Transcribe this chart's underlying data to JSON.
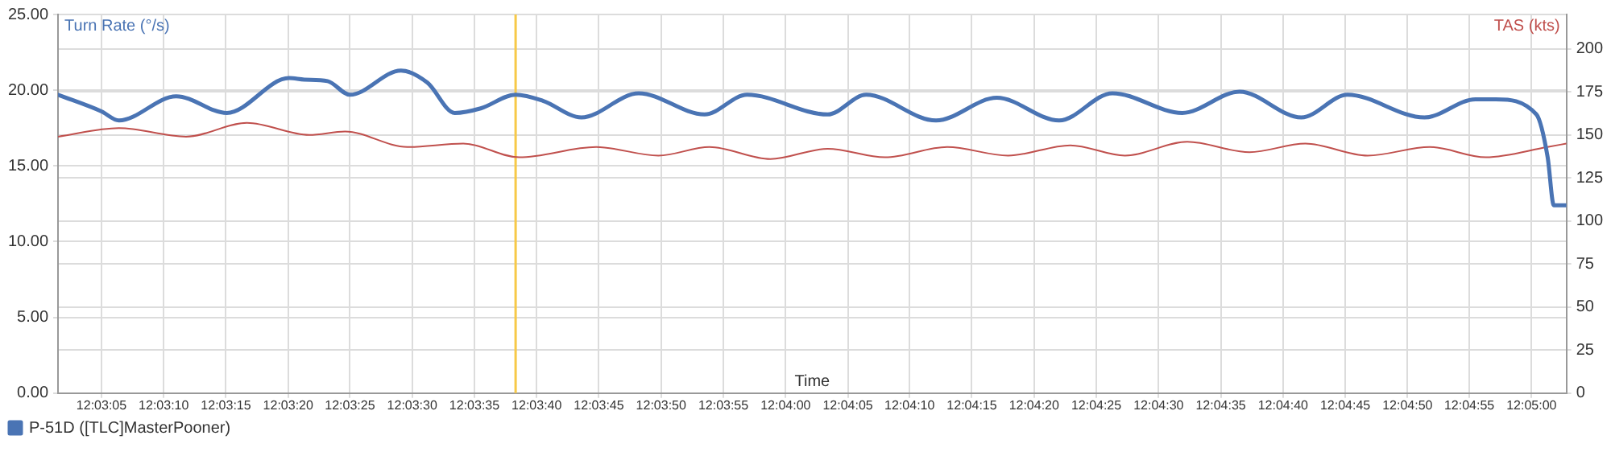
{
  "chart_data": {
    "type": "line",
    "xlabel": "Time",
    "ylabel": "Turn Rate (°/s)",
    "y2label": "TAS (kts)",
    "legend": "bottom left",
    "grid": true,
    "marker": "none",
    "line_style": "solid",
    "xlim": [
      12.05042,
      12.08411
    ],
    "xticks": [
      {
        "value": 12.05139,
        "label": "12:03:05"
      },
      {
        "value": 12.05278,
        "label": "12:03:10"
      },
      {
        "value": 12.05417,
        "label": "12:03:15"
      },
      {
        "value": 12.05556,
        "label": "12:03:20"
      },
      {
        "value": 12.05694,
        "label": "12:03:25"
      },
      {
        "value": 12.05833,
        "label": "12:03:30"
      },
      {
        "value": 12.05972,
        "label": "12:03:35"
      },
      {
        "value": 12.06111,
        "label": "12:03:40"
      },
      {
        "value": 12.0625,
        "label": "12:03:45"
      },
      {
        "value": 12.06389,
        "label": "12:03:50"
      },
      {
        "value": 12.06528,
        "label": "12:03:55"
      },
      {
        "value": 12.06667,
        "label": "12:04:00"
      },
      {
        "value": 12.06806,
        "label": "12:04:05"
      },
      {
        "value": 12.06944,
        "label": "12:04:10"
      },
      {
        "value": 12.07083,
        "label": "12:04:15"
      },
      {
        "value": 12.07222,
        "label": "12:04:20"
      },
      {
        "value": 12.07361,
        "label": "12:04:25"
      },
      {
        "value": 12.075,
        "label": "12:04:30"
      },
      {
        "value": 12.07639,
        "label": "12:04:35"
      },
      {
        "value": 12.07778,
        "label": "12:04:40"
      },
      {
        "value": 12.07917,
        "label": "12:04:45"
      },
      {
        "value": 12.08056,
        "label": "12:04:50"
      },
      {
        "value": 12.08194,
        "label": "12:04:55"
      },
      {
        "value": 12.08333,
        "label": "12:05:00"
      }
    ],
    "ylim": [
      0,
      25
    ],
    "yticks": [
      {
        "value": 0,
        "label": "0.00"
      },
      {
        "value": 5,
        "label": "5.00"
      },
      {
        "value": 10,
        "label": "10.00"
      },
      {
        "value": 15,
        "label": "15.00"
      },
      {
        "value": 20,
        "label": "20.00"
      },
      {
        "value": 25,
        "label": "25.00"
      }
    ],
    "y2lim": [
      0,
      220
    ],
    "y2ticks": [
      0,
      25,
      50,
      75,
      100,
      125,
      150,
      175,
      200
    ],
    "ref_lines": [
      {
        "axis": "x",
        "value": 12.06064,
        "color": "#f7c948"
      }
    ],
    "series": [
      {
        "name": "P-51D ([TLC]MasterPooner)",
        "color": "#4a74b4",
        "x": [
          12.05042,
          12.05139,
          12.05178,
          12.05306,
          12.05419,
          12.05558,
          12.05592,
          12.05644,
          12.05694,
          12.05808,
          12.05867,
          12.05928,
          12.05986,
          12.06064,
          12.06125,
          12.06211,
          12.06339,
          12.06486,
          12.06581,
          12.06761,
          12.06847,
          12.07003,
          12.07139,
          12.07278,
          12.07397,
          12.07553,
          12.07681,
          12.07819,
          12.07922,
          12.08094,
          12.08208,
          12.08253,
          12.08344,
          12.08369,
          12.08383,
          12.08411
        ],
        "values": [
          19.7,
          18.6,
          18.0,
          19.6,
          18.5,
          20.8,
          20.7,
          20.6,
          19.7,
          21.3,
          20.5,
          18.5,
          18.8,
          19.7,
          19.3,
          18.2,
          19.8,
          18.4,
          19.7,
          18.4,
          19.7,
          18.0,
          19.5,
          18.0,
          19.8,
          18.5,
          19.9,
          18.2,
          19.7,
          18.2,
          19.4,
          19.4,
          18.4,
          15.6,
          12.4,
          12.4
        ]
      },
      {
        "color": "#c0504d",
        "axis": "y2",
        "x": [
          12.05042,
          12.05178,
          12.05328,
          12.05464,
          12.05603,
          12.05683,
          12.05822,
          12.05947,
          12.06072,
          12.06244,
          12.06383,
          12.06497,
          12.06633,
          12.06761,
          12.06889,
          12.07028,
          12.07164,
          12.07303,
          12.07425,
          12.07564,
          12.07703,
          12.07828,
          12.07967,
          12.08106,
          12.08231,
          12.08369,
          12.08411
        ],
        "values": [
          149,
          154,
          149,
          157,
          150,
          152,
          143,
          145,
          137,
          143,
          138,
          143,
          136,
          142,
          137,
          143,
          138,
          144,
          138,
          146,
          140,
          145,
          138,
          143,
          137,
          143,
          145
        ]
      }
    ]
  }
}
